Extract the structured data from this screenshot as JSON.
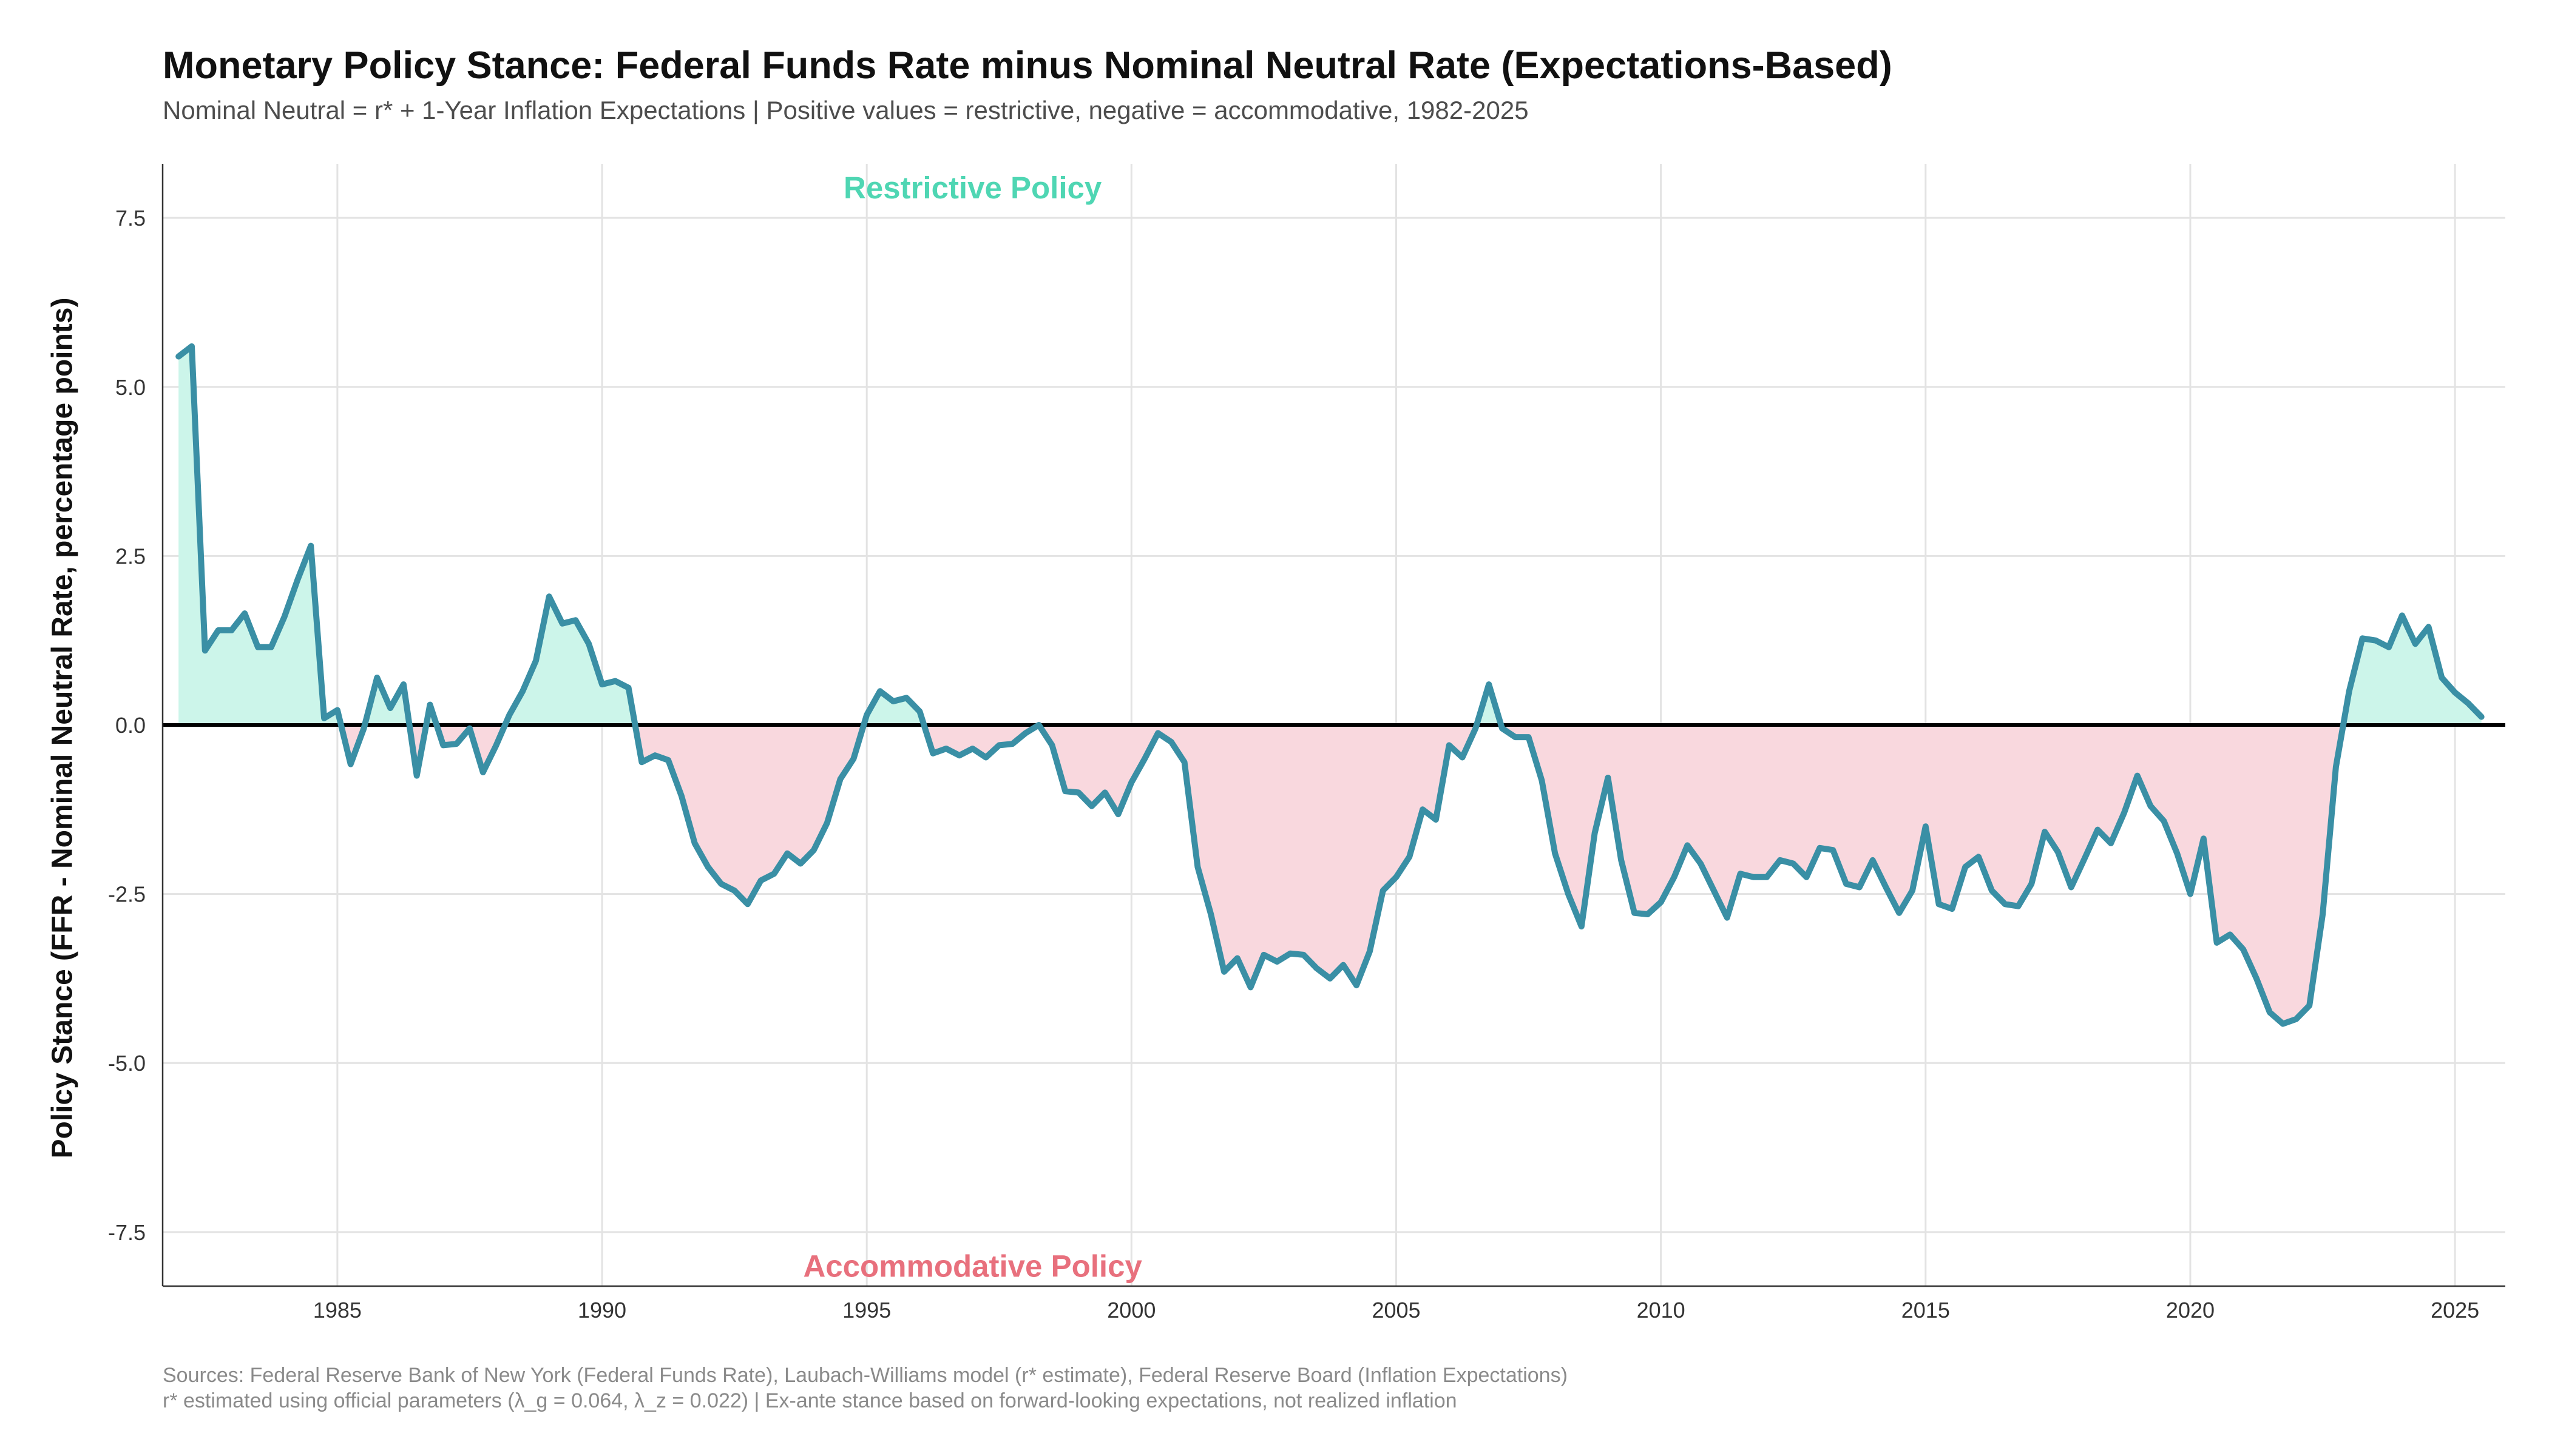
{
  "title": "Monetary Policy Stance: Federal Funds Rate minus Nominal Neutral Rate (Expectations-Based)",
  "subtitle": "Nominal Neutral = r* + 1-Year Inflation Expectations | Positive values = restrictive, negative = accommodative, 1982-2025",
  "caption_line1": "Sources: Federal Reserve Bank of New York (Federal Funds Rate), Laubach-Williams model (r* estimate), Federal Reserve Board (Inflation Expectations)",
  "caption_line2": "r* estimated using official parameters (λ_g = 0.064, λ_z = 0.022) | Ex-ante stance based on forward-looking expectations, not realized inflation",
  "colors": {
    "line": "#3a8fa5",
    "restrictive_fill": "#ccf5ea",
    "accommodative_fill": "#f9d8de",
    "restrictive_label": "#4fd6b3",
    "accommodative_label": "#e8707d",
    "grid": "#e3e3e3",
    "zero_line": "#000000"
  },
  "chart_data": {
    "type": "area",
    "title": "Monetary Policy Stance: Federal Funds Rate minus Nominal Neutral Rate (Expectations-Based)",
    "xlabel": "",
    "ylabel": "Policy Stance (FFR - Nominal Neutral Rate, percentage points)",
    "xlim": [
      1981.7,
      2025.95
    ],
    "ylim": [
      -8.3,
      8.3
    ],
    "x_ticks": [
      1985,
      1990,
      1995,
      2000,
      2005,
      2010,
      2015,
      2020,
      2025
    ],
    "y_ticks": [
      -7.5,
      -5.0,
      -2.5,
      0.0,
      2.5,
      5.0,
      7.5
    ],
    "y_tick_labels": [
      "-7.5",
      "-5.0",
      "-2.5",
      "0.0",
      "2.5",
      "5.0",
      "7.5"
    ],
    "grid": true,
    "legend": "none",
    "annotations": [
      {
        "text": "Restrictive Policy",
        "x": 1997,
        "y": 7.95
      },
      {
        "text": "Accommodative Policy",
        "x": 1997,
        "y": -8.0
      }
    ],
    "series": [
      {
        "x": [
          1982.0,
          1982.25,
          1982.5,
          1982.75,
          1983.0,
          1983.25,
          1983.5,
          1983.75,
          1984.0,
          1984.25,
          1984.5,
          1984.75,
          1985.0,
          1985.25,
          1985.5,
          1985.75,
          1986.0,
          1986.25,
          1986.5,
          1986.75,
          1987.0,
          1987.25,
          1987.5,
          1987.75,
          1988.0,
          1988.25,
          1988.5,
          1988.75,
          1989.0,
          1989.25,
          1989.5,
          1989.75,
          1990.0,
          1990.25,
          1990.5,
          1990.75,
          1991.0,
          1991.25,
          1991.5,
          1991.75,
          1992.0,
          1992.25,
          1992.5,
          1992.75,
          1993.0,
          1993.25,
          1993.5,
          1993.75,
          1994.0,
          1994.25,
          1994.5,
          1994.75,
          1995.0,
          1995.25,
          1995.5,
          1995.75,
          1996.0,
          1996.25,
          1996.5,
          1996.75,
          1997.0,
          1997.25,
          1997.5,
          1997.75,
          1998.0,
          1998.25,
          1998.5,
          1998.75,
          1999.0,
          1999.25,
          1999.5,
          1999.75,
          2000.0,
          2000.25,
          2000.5,
          2000.75,
          2001.0,
          2001.25,
          2001.5,
          2001.75,
          2002.0,
          2002.25,
          2002.5,
          2002.75,
          2003.0,
          2003.25,
          2003.5,
          2003.75,
          2004.0,
          2004.25,
          2004.5,
          2004.75,
          2005.0,
          2005.25,
          2005.5,
          2005.75,
          2006.0,
          2006.25,
          2006.5,
          2006.75,
          2007.0,
          2007.25,
          2007.5,
          2007.75,
          2008.0,
          2008.25,
          2008.5,
          2008.75,
          2009.0,
          2009.25,
          2009.5,
          2009.75,
          2010.0,
          2010.25,
          2010.5,
          2010.75,
          2011.0,
          2011.25,
          2011.5,
          2011.75,
          2012.0,
          2012.25,
          2012.5,
          2012.75,
          2013.0,
          2013.25,
          2013.5,
          2013.75,
          2014.0,
          2014.25,
          2014.5,
          2014.75,
          2015.0,
          2015.25,
          2015.5,
          2015.75,
          2016.0,
          2016.25,
          2016.5,
          2016.75,
          2017.0,
          2017.25,
          2017.5,
          2017.75,
          2018.0,
          2018.25,
          2018.5,
          2018.75,
          2019.0,
          2019.25,
          2019.5,
          2019.75,
          2020.0,
          2020.25,
          2020.5,
          2020.75,
          2021.0,
          2021.25,
          2021.5,
          2021.75,
          2022.0,
          2022.25,
          2022.5,
          2022.75,
          2023.0,
          2023.25,
          2023.5,
          2023.75,
          2024.0,
          2024.25,
          2024.5,
          2024.75,
          2025.0,
          2025.25,
          2025.5
        ],
        "values": [
          5.45,
          5.6,
          1.1,
          1.4,
          1.4,
          1.65,
          1.15,
          1.15,
          1.6,
          2.15,
          2.65,
          0.1,
          0.22,
          -0.58,
          -0.05,
          0.7,
          0.25,
          0.6,
          -0.75,
          0.3,
          -0.3,
          -0.28,
          -0.05,
          -0.7,
          -0.3,
          0.15,
          0.5,
          0.95,
          1.9,
          1.5,
          1.55,
          1.2,
          0.6,
          0.65,
          0.55,
          -0.55,
          -0.45,
          -0.52,
          -1.05,
          -1.75,
          -2.1,
          -2.35,
          -2.45,
          -2.65,
          -2.3,
          -2.2,
          -1.9,
          -2.05,
          -1.85,
          -1.45,
          -0.8,
          -0.5,
          0.15,
          0.5,
          0.35,
          0.4,
          0.2,
          -0.42,
          -0.35,
          -0.45,
          -0.35,
          -0.48,
          -0.3,
          -0.28,
          -0.12,
          0.0,
          -0.3,
          -0.98,
          -1.0,
          -1.2,
          -1.0,
          -1.32,
          -0.85,
          -0.5,
          -0.12,
          -0.25,
          -0.55,
          -2.1,
          -2.8,
          -3.65,
          -3.45,
          -3.88,
          -3.4,
          -3.5,
          -3.38,
          -3.4,
          -3.6,
          -3.75,
          -3.55,
          -3.85,
          -3.35,
          -2.45,
          -2.25,
          -1.95,
          -1.25,
          -1.4,
          -0.3,
          -0.48,
          -0.05,
          0.6,
          -0.05,
          -0.18,
          -0.18,
          -0.82,
          -1.9,
          -2.5,
          -2.98,
          -1.6,
          -0.78,
          -2.0,
          -2.78,
          -2.8,
          -2.62,
          -2.25,
          -1.78,
          -2.05,
          -2.45,
          -2.85,
          -2.2,
          -2.25,
          -2.25,
          -2.0,
          -2.05,
          -2.25,
          -1.82,
          -1.85,
          -2.35,
          -2.4,
          -2.0,
          -2.4,
          -2.78,
          -2.45,
          -1.5,
          -2.65,
          -2.72,
          -2.1,
          -1.95,
          -2.45,
          -2.65,
          -2.68,
          -2.35,
          -1.58,
          -1.88,
          -2.4,
          -1.98,
          -1.55,
          -1.75,
          -1.3,
          -0.75,
          -1.2,
          -1.42,
          -1.9,
          -2.5,
          -1.68,
          -3.22,
          -3.1,
          -3.32,
          -3.75,
          -4.25,
          -4.42,
          -4.35,
          -4.15,
          -2.8,
          -0.62,
          0.5,
          1.28,
          1.25,
          1.15,
          1.62,
          1.2,
          1.45,
          0.7,
          0.48,
          0.32,
          0.12
        ]
      }
    ]
  }
}
